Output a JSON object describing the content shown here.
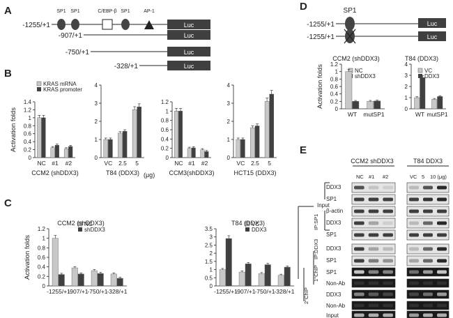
{
  "panels": {
    "A": "A",
    "B": "B",
    "C": "C",
    "D": "D",
    "E": "E"
  },
  "panelA": {
    "sites": [
      "SP1",
      "SP1",
      "C/EBP-β",
      "SP1",
      "AP-1"
    ],
    "constructs": [
      "-1255/+1",
      "-907/+1",
      "-750/+1",
      "-328/+1"
    ],
    "luc": "Luc"
  },
  "panelB": {
    "ylabel": "Activation folds",
    "legend": [
      "KRAS mRNA",
      "KRAS promoter"
    ],
    "unit": "(μg)",
    "colors": {
      "light": "#c8c8c8",
      "dark": "#404040"
    }
  },
  "panelC": {
    "ylabel": "Activation folds"
  },
  "panelD": {
    "sp1": "SP1",
    "constructs": [
      "-1255/+1",
      "-1255/+1"
    ],
    "luc": "Luc",
    "ylabel": "Activation folds"
  },
  "panelE": {
    "header_left": "CCM2 shDDX3",
    "header_right": "T84 DDX3",
    "lanes_left": [
      "NC",
      "#1",
      "#2"
    ],
    "lanes_right": [
      "VC",
      "5",
      "10 (μg)"
    ],
    "groups": [
      "Input",
      "IP:SP1",
      "IP:DDX3",
      "1°ChIP",
      "2°ChIP"
    ],
    "rows": [
      "DDX3",
      "SP1",
      "β-actin",
      "DDX3",
      "SP1",
      "DDX3",
      "SP1",
      "SP1",
      "Non-Ab",
      "DDX3",
      "Non-Ab",
      "Input"
    ]
  },
  "chart_data": [
    {
      "id": "B1",
      "type": "bar",
      "title": "",
      "xlabel": "CCM2 (shDDX3)",
      "ylabel": "Activation folds",
      "categories": [
        "NC",
        "#1",
        "#2"
      ],
      "series": [
        {
          "name": "KRAS mRNA",
          "values": [
            1.0,
            0.25,
            0.22
          ]
        },
        {
          "name": "KRAS promoter",
          "values": [
            1.0,
            0.31,
            0.28
          ]
        }
      ],
      "ylim": [
        0,
        1.4
      ],
      "yticks": [
        "0",
        "0.2",
        "0.4",
        "0.6",
        "0.8",
        "1",
        "1.2",
        "1.4"
      ]
    },
    {
      "id": "B2",
      "type": "bar",
      "title": "",
      "xlabel": "T84 (DDX3)",
      "ylabel": "",
      "categories": [
        "VC",
        "2.5",
        "5"
      ],
      "series": [
        {
          "name": "KRAS mRNA",
          "values": [
            1.0,
            1.35,
            2.65
          ]
        },
        {
          "name": "KRAS promoter",
          "values": [
            1.0,
            1.45,
            2.8
          ]
        }
      ],
      "ylim": [
        0,
        4
      ],
      "yticks": [
        "0",
        "1",
        "2",
        "3",
        "4"
      ]
    },
    {
      "id": "B3",
      "type": "bar",
      "title": "",
      "xlabel": "CCM3(shDDX3)",
      "ylabel": "",
      "categories": [
        "NC",
        "#1",
        "#2"
      ],
      "series": [
        {
          "name": "KRAS mRNA",
          "values": [
            1.0,
            0.2,
            0.17
          ]
        },
        {
          "name": "KRAS promoter",
          "values": [
            1.0,
            0.21,
            0.13
          ]
        }
      ],
      "ylim": [
        0,
        1.2
      ],
      "yticks": [
        "0",
        "0.2",
        "0.4",
        "0.6",
        "0.8",
        "1",
        "1.2"
      ]
    },
    {
      "id": "B4",
      "type": "bar",
      "title": "",
      "xlabel": "HCT15 (DDX3)",
      "ylabel": "",
      "categories": [
        "VC",
        "2.5",
        "5"
      ],
      "series": [
        {
          "name": "KRAS mRNA",
          "values": [
            1.0,
            1.65,
            3.1
          ]
        },
        {
          "name": "KRAS promoter",
          "values": [
            1.0,
            1.75,
            3.5
          ]
        }
      ],
      "ylim": [
        0,
        4
      ],
      "yticks": [
        "0",
        "1",
        "2",
        "3",
        "4"
      ]
    },
    {
      "id": "C1",
      "type": "bar",
      "title": "CCM2 (shDDX3)",
      "xlabel": "",
      "ylabel": "Activation folds",
      "categories": [
        "-1255/+1",
        "-907/+1",
        "-750/+1",
        "-328/+1"
      ],
      "series": [
        {
          "name": "NC",
          "values": [
            1.0,
            0.38,
            0.32,
            0.25
          ]
        },
        {
          "name": "shDDX3",
          "values": [
            0.24,
            0.25,
            0.26,
            0.16
          ]
        }
      ],
      "ylim": [
        0,
        1.2
      ],
      "yticks": [
        "0",
        "0.2",
        "0.4",
        "0.6",
        "0.8",
        "1",
        "1.2"
      ]
    },
    {
      "id": "C2",
      "type": "bar",
      "title": "T84 (DDX3)",
      "xlabel": "",
      "ylabel": "",
      "categories": [
        "-1255/+1",
        "-907/+1",
        "-750/+1",
        "-328/+1"
      ],
      "series": [
        {
          "name": "VC",
          "values": [
            1.0,
            0.85,
            0.75,
            0.65
          ]
        },
        {
          "name": "DDX3",
          "values": [
            2.9,
            1.35,
            1.3,
            1.15
          ]
        }
      ],
      "ylim": [
        0,
        3.5
      ],
      "yticks": [
        "0",
        "0.5",
        "1",
        "1.5",
        "2",
        "2.5",
        "3",
        "3.5"
      ]
    },
    {
      "id": "D1",
      "type": "bar",
      "title": "CCM2 (shDDX3)",
      "xlabel": "",
      "ylabel": "Activation folds",
      "categories": [
        "WT",
        "mutSP1"
      ],
      "series": [
        {
          "name": "NC",
          "values": [
            1.0,
            0.2
          ]
        },
        {
          "name": "shDDX3",
          "values": [
            0.2,
            0.21
          ]
        }
      ],
      "ylim": [
        0,
        1.2
      ],
      "yticks": [
        "0",
        "0.2",
        "0.4",
        "0.6",
        "0.8",
        "1",
        "1.2"
      ]
    },
    {
      "id": "D2",
      "type": "bar",
      "title": "T84 (DDX3)",
      "xlabel": "",
      "ylabel": "",
      "categories": [
        "WT",
        "mutSP1"
      ],
      "series": [
        {
          "name": "VC",
          "values": [
            1.0,
            0.85
          ]
        },
        {
          "name": "DDX3",
          "values": [
            2.8,
            1.1
          ]
        }
      ],
      "ylim": [
        0,
        4
      ],
      "yticks": [
        "0",
        "1",
        "2",
        "3",
        "4"
      ]
    }
  ]
}
